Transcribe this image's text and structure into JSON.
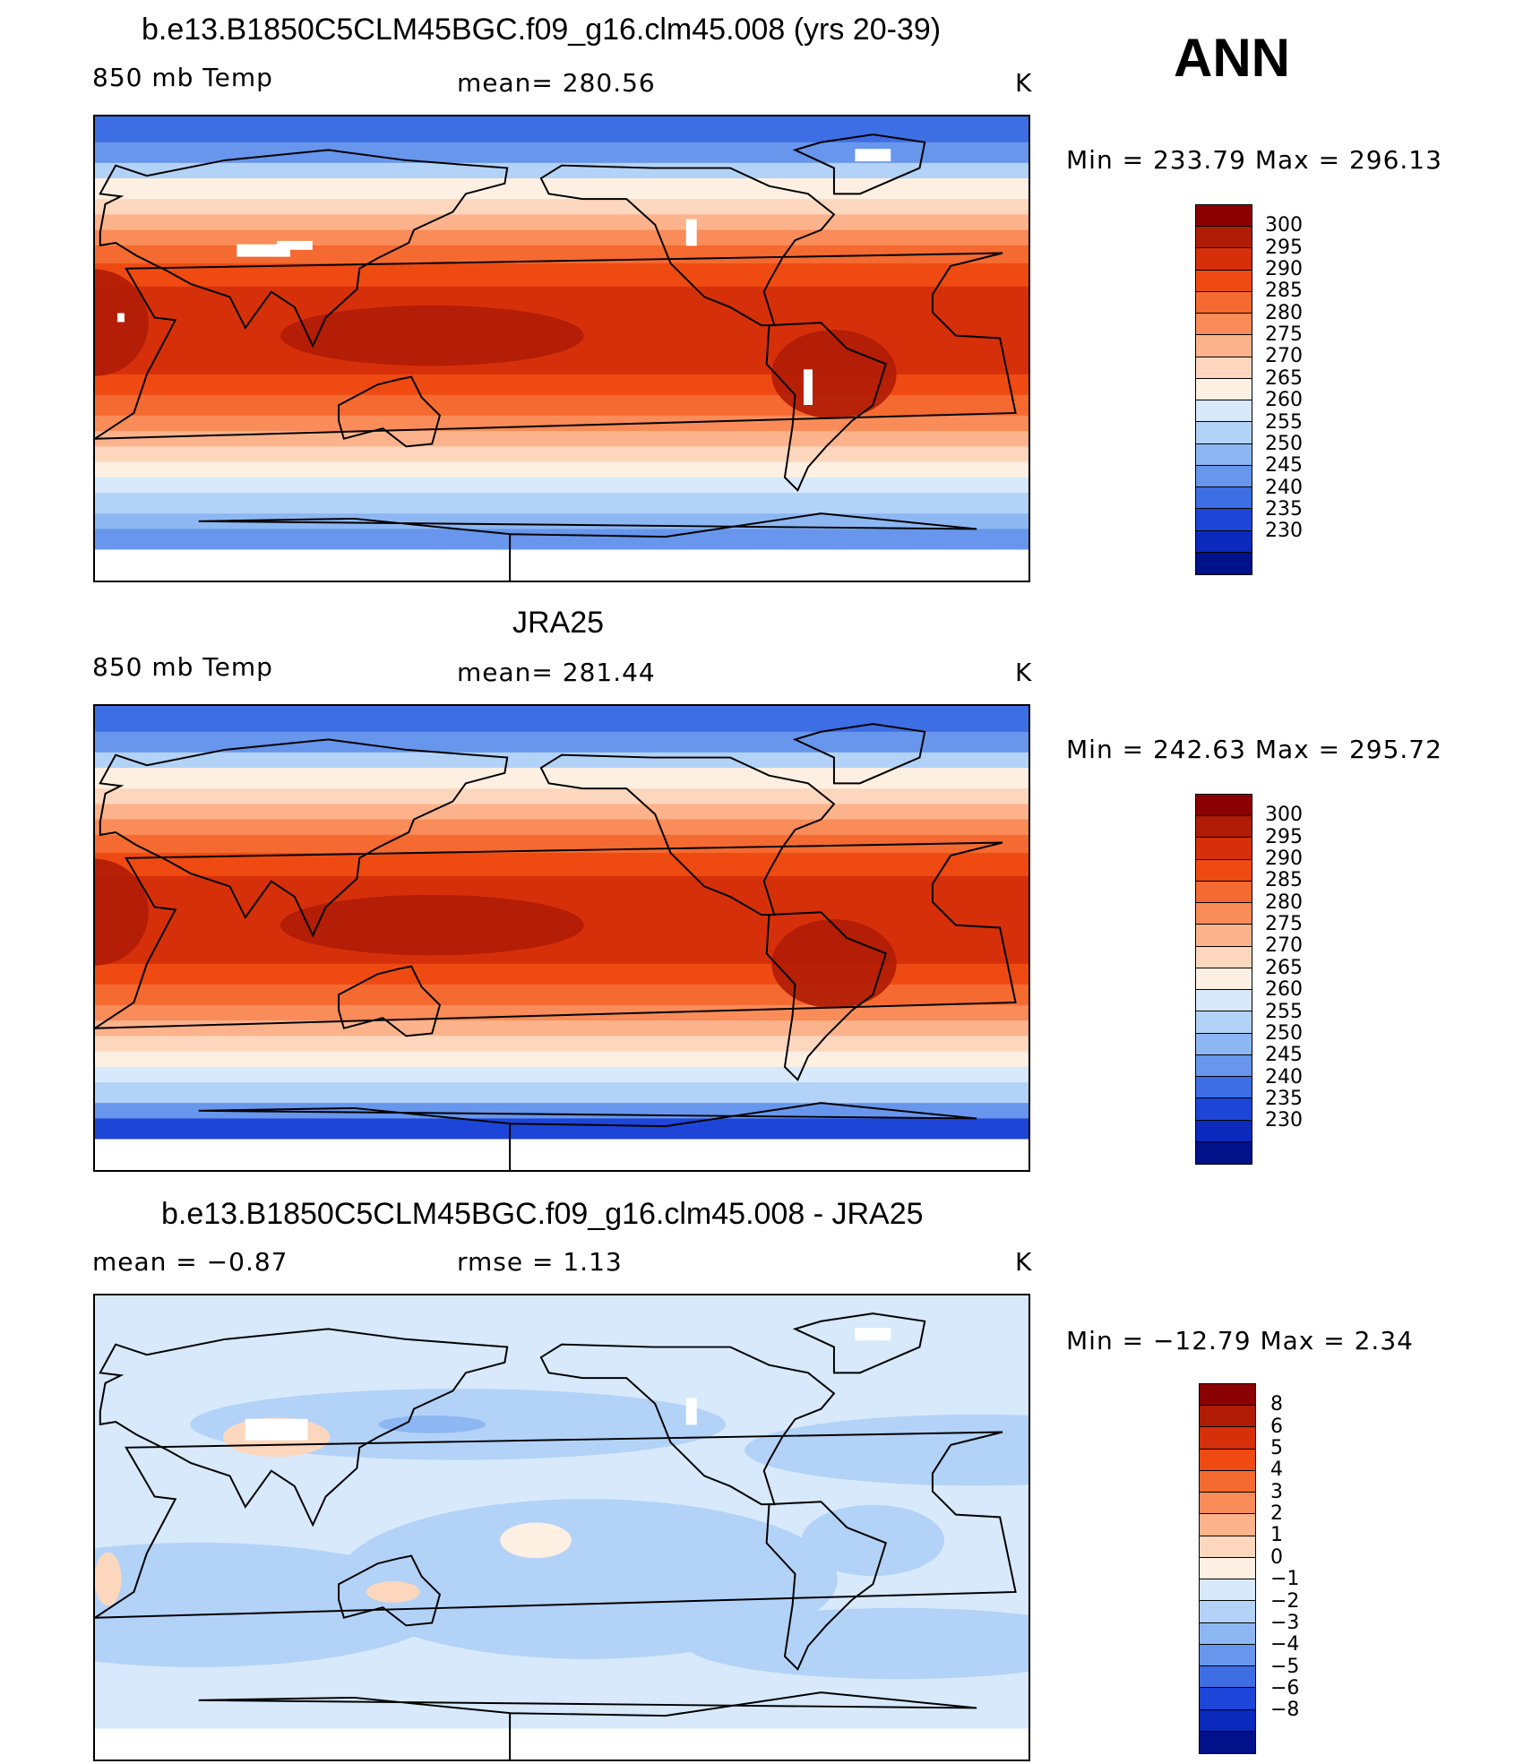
{
  "header": {
    "season": "ANN"
  },
  "panels": [
    {
      "title": "b.e13.B1850C5CLM45BGC.f09_g16.clm45.008 (yrs 20-39)",
      "left_label": "850 mb Temp",
      "center_label": "mean= 280.56",
      "units": "K",
      "stats": "Min = 233.79 Max = 296.13",
      "kind": "model"
    },
    {
      "title": "JRA25",
      "left_label": "850 mb Temp",
      "center_label": "mean= 281.44",
      "units": "K",
      "stats": "Min = 242.63 Max = 295.72",
      "kind": "obs"
    },
    {
      "title": "b.e13.B1850C5CLM45BGC.f09_g16.clm45.008 - JRA25",
      "left_label": "mean = −0.87",
      "center_label": "rmse = 1.13",
      "units": "K",
      "stats": "Min = −12.79 Max = 2.34",
      "kind": "diff"
    }
  ],
  "colorbars": {
    "temperature": {
      "levels": [
        "300",
        "295",
        "290",
        "285",
        "280",
        "275",
        "270",
        "265",
        "260",
        "255",
        "250",
        "245",
        "240",
        "235",
        "230"
      ],
      "colors": [
        "#8b0000",
        "#b01c05",
        "#d6300a",
        "#ee4a12",
        "#f46a30",
        "#f98c58",
        "#fcb38b",
        "#fdd7bd",
        "#fdf0e2",
        "#d7e9fb",
        "#b3d2f7",
        "#8db7f2",
        "#6796ec",
        "#3e6ee4",
        "#1d45d8",
        "#0b29bd",
        "#00118a"
      ]
    },
    "difference": {
      "levels": [
        "8",
        "6",
        "5",
        "4",
        "3",
        "2",
        "1",
        "0",
        "−1",
        "−2",
        "−3",
        "−4",
        "−5",
        "−6",
        "−8"
      ],
      "colors": [
        "#8b0000",
        "#b01c05",
        "#d6300a",
        "#ee4a12",
        "#f46a30",
        "#f98c58",
        "#fcb38b",
        "#fdd7bd",
        "#fdf0e2",
        "#d7e9fb",
        "#b3d2f7",
        "#8db7f2",
        "#6796ec",
        "#3e6ee4",
        "#1d45d8",
        "#0b29bd",
        "#00118a"
      ]
    }
  },
  "map_legend": {
    "map_type": "global cylindrical equidistant, centered on 180°",
    "coastlines": true
  }
}
